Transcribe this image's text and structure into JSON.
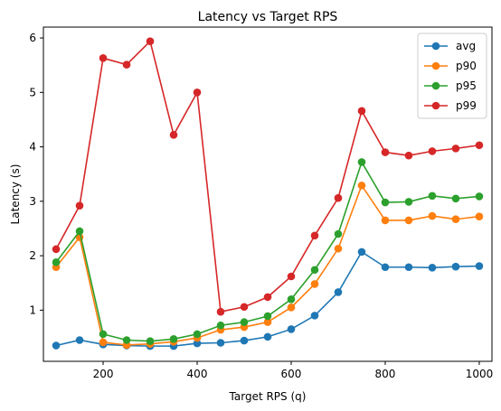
{
  "chart_data": {
    "type": "line",
    "title": "Latency vs Target RPS",
    "xlabel": "Target RPS (q)",
    "ylabel": "Latency (s)",
    "xlim": [
      73,
      1027
    ],
    "ylim": [
      0.06,
      6.2
    ],
    "xticks": [
      200,
      400,
      600,
      800,
      1000
    ],
    "yticks": [
      1,
      2,
      3,
      4,
      5,
      6
    ],
    "grid": false,
    "legend_position": "top-right",
    "x": [
      100,
      150,
      200,
      250,
      300,
      350,
      400,
      450,
      500,
      550,
      600,
      650,
      700,
      750,
      800,
      850,
      900,
      950,
      1000
    ],
    "series": [
      {
        "name": "avg",
        "color": "#1f77b4",
        "values": [
          0.35,
          0.45,
          0.37,
          0.35,
          0.34,
          0.34,
          0.39,
          0.4,
          0.44,
          0.51,
          0.65,
          0.9,
          1.33,
          2.07,
          1.79,
          1.79,
          1.78,
          1.8,
          1.81
        ]
      },
      {
        "name": "p90",
        "color": "#ff7f0e",
        "values": [
          1.79,
          2.34,
          0.41,
          0.36,
          0.38,
          0.42,
          0.49,
          0.64,
          0.69,
          0.78,
          1.05,
          1.48,
          2.13,
          3.29,
          2.65,
          2.65,
          2.73,
          2.67,
          2.72
        ]
      },
      {
        "name": "p95",
        "color": "#2ca02c",
        "values": [
          1.88,
          2.45,
          0.56,
          0.45,
          0.43,
          0.47,
          0.56,
          0.72,
          0.78,
          0.89,
          1.2,
          1.74,
          2.4,
          3.72,
          2.98,
          2.99,
          3.1,
          3.05,
          3.09
        ]
      },
      {
        "name": "p99",
        "color": "#d62728",
        "values": [
          2.12,
          2.92,
          5.63,
          5.51,
          5.94,
          4.22,
          5.0,
          0.97,
          1.06,
          1.24,
          1.62,
          2.37,
          3.06,
          4.66,
          3.9,
          3.84,
          3.92,
          3.97,
          4.03
        ]
      }
    ]
  }
}
